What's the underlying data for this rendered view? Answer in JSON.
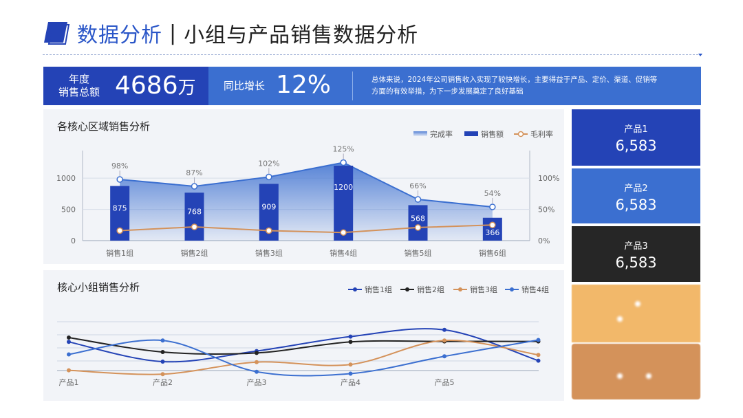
{
  "header": {
    "title_part1": "数据分析",
    "separator": "|",
    "title_part2": "小组与产品销售数据分析"
  },
  "kpi": {
    "annual_label_line1": "年度",
    "annual_label_line2": "销售总额",
    "annual_value": "4686",
    "annual_unit": "万",
    "yoy_label": "同比增长",
    "yoy_value": "12%",
    "summary_line1": "总体来说，2024年公司销售收入实现了较快增长，主要得益于产品、定价、渠道、促销等",
    "summary_line2": "方面的有效举措，为下一步发展奠定了良好基础"
  },
  "panel1": {
    "title": "各核心区域销售分析"
  },
  "panel2": {
    "title": "核心小组销售分析"
  },
  "cards": [
    {
      "label": "产品1",
      "value": "6,583",
      "color": "#2443b6"
    },
    {
      "label": "产品2",
      "value": "6,583",
      "color": "#3b6fd0"
    },
    {
      "label": "产品3",
      "value": "6,583",
      "color": "#262626"
    },
    {
      "label": "",
      "value": "",
      "color": "#f2b86a"
    },
    {
      "label": "",
      "value": "",
      "color": "#d4925a"
    }
  ],
  "chart_data": [
    {
      "type": "bar",
      "title": "各核心区域销售分析",
      "categories": [
        "销售1组",
        "销售2组",
        "销售3组",
        "销售4组",
        "销售5组",
        "销售6组"
      ],
      "series": [
        {
          "name": "完成率",
          "type": "area",
          "axis": "right",
          "values": [
            98,
            87,
            102,
            125,
            66,
            54
          ],
          "labels": [
            "98%",
            "87%",
            "102%",
            "125%",
            "66%",
            "54%"
          ],
          "color": "#3b6fd0"
        },
        {
          "name": "销售额",
          "type": "bar",
          "axis": "left",
          "values": [
            875,
            768,
            909,
            1200,
            568,
            366
          ],
          "color": "#2443b6"
        },
        {
          "name": "毛利率",
          "type": "line",
          "axis": "right",
          "values": [
            16,
            22,
            16,
            13,
            21,
            25
          ],
          "color": "#d4925a"
        }
      ],
      "y_left": {
        "ticks": [
          "0",
          "500",
          "1000"
        ],
        "range": [
          0,
          1200
        ]
      },
      "y_right": {
        "ticks": [
          "0%",
          "50%",
          "100%"
        ],
        "range": [
          0,
          120
        ]
      },
      "legend": "top-right"
    },
    {
      "type": "line",
      "title": "核心小组销售分析",
      "categories": [
        "产品1",
        "产品2",
        "产品3",
        "产品4",
        "产品5",
        ""
      ],
      "series": [
        {
          "name": "销售1组",
          "values": [
            61,
            20,
            42,
            72,
            86,
            22
          ],
          "color": "#2443b6"
        },
        {
          "name": "销售2组",
          "values": [
            70,
            40,
            38,
            61,
            62,
            62
          ],
          "color": "#222222"
        },
        {
          "name": "销售3组",
          "values": [
            2,
            -6,
            19,
            14,
            64,
            34
          ],
          "color": "#d4925a"
        },
        {
          "name": "销售4组",
          "values": [
            35,
            64,
            -1,
            -5,
            31,
            65
          ],
          "color": "#3b6fd0"
        }
      ],
      "legend": "top-right",
      "grid": true
    }
  ]
}
